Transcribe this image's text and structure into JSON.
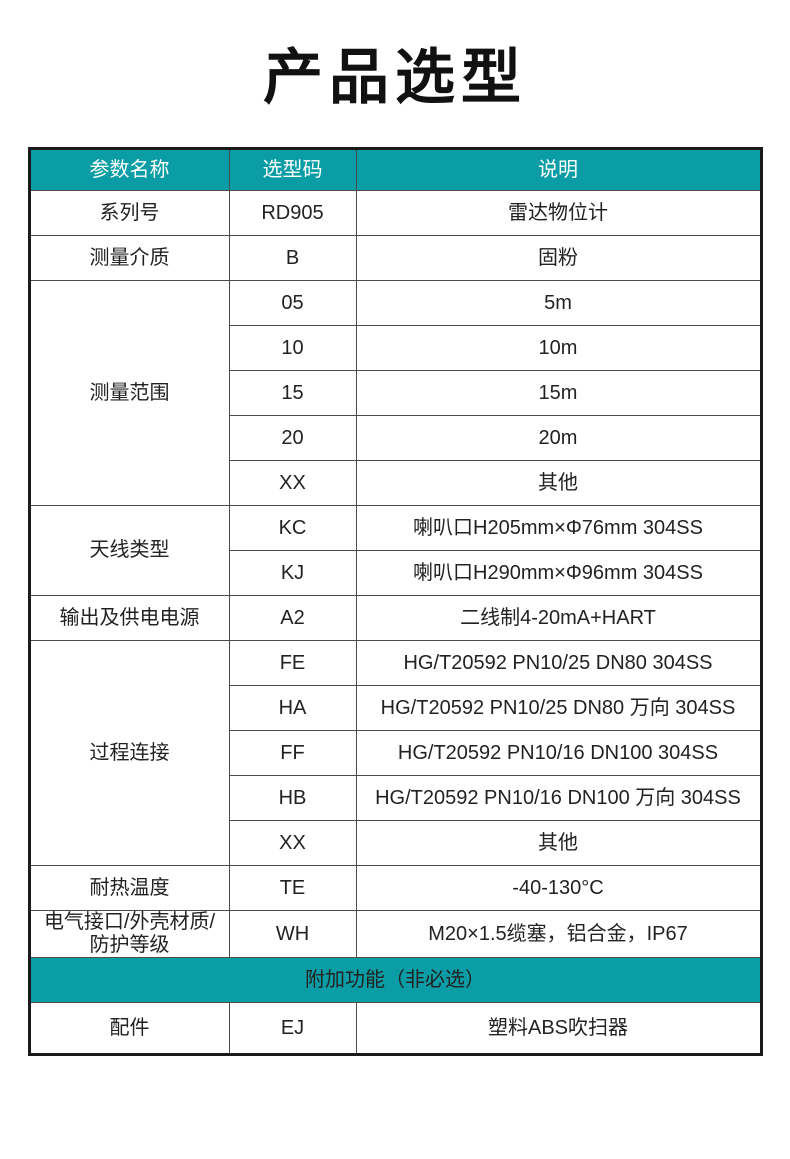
{
  "page": {
    "title": "产品选型"
  },
  "colors": {
    "accent_teal": "#0a9da5",
    "header_text": "#ffffff",
    "cell_text": "#222222",
    "outer_border": "#1a1a1a",
    "inner_border": "#4a4a4a"
  },
  "table": {
    "columns": [
      "参数名称",
      "选型码",
      "说明"
    ],
    "groups": [
      {
        "name": "系列号",
        "rows": [
          {
            "code": "RD905",
            "desc": "雷达物位计"
          }
        ]
      },
      {
        "name": "测量介质",
        "rows": [
          {
            "code": "B",
            "desc": "固粉"
          }
        ]
      },
      {
        "name": "测量范围",
        "rows": [
          {
            "code": "05",
            "desc": "5m"
          },
          {
            "code": "10",
            "desc": "10m"
          },
          {
            "code": "15",
            "desc": "15m"
          },
          {
            "code": "20",
            "desc": "20m"
          },
          {
            "code": "XX",
            "desc": "其他"
          }
        ]
      },
      {
        "name": "天线类型",
        "rows": [
          {
            "code": "KC",
            "desc": "喇叭口H205mm×Φ76mm 304SS"
          },
          {
            "code": "KJ",
            "desc": "喇叭口H290mm×Φ96mm 304SS"
          }
        ]
      },
      {
        "name": "输出及供电电源",
        "rows": [
          {
            "code": "A2",
            "desc": "二线制4-20mA+HART"
          }
        ]
      },
      {
        "name": "过程连接",
        "rows": [
          {
            "code": "FE",
            "desc": "HG/T20592 PN10/25 DN80 304SS"
          },
          {
            "code": "HA",
            "desc": "HG/T20592 PN10/25 DN80 万向 304SS"
          },
          {
            "code": "FF",
            "desc": "HG/T20592 PN10/16 DN100 304SS"
          },
          {
            "code": "HB",
            "desc": "HG/T20592 PN10/16 DN100 万向 304SS"
          },
          {
            "code": "XX",
            "desc": "其他"
          }
        ]
      },
      {
        "name": "耐热温度",
        "rows": [
          {
            "code": "TE",
            "desc": "-40-130°C"
          }
        ]
      },
      {
        "name": "电气接口/外壳材质/防护等级",
        "rows": [
          {
            "code": "WH",
            "desc": "M20×1.5缆塞，铝合金，IP67"
          }
        ]
      }
    ],
    "band": {
      "label": "附加功能（非必选）"
    },
    "extra_groups": [
      {
        "name": "配件",
        "rows": [
          {
            "code": "EJ",
            "desc": "塑料ABS吹扫器"
          }
        ]
      }
    ]
  }
}
